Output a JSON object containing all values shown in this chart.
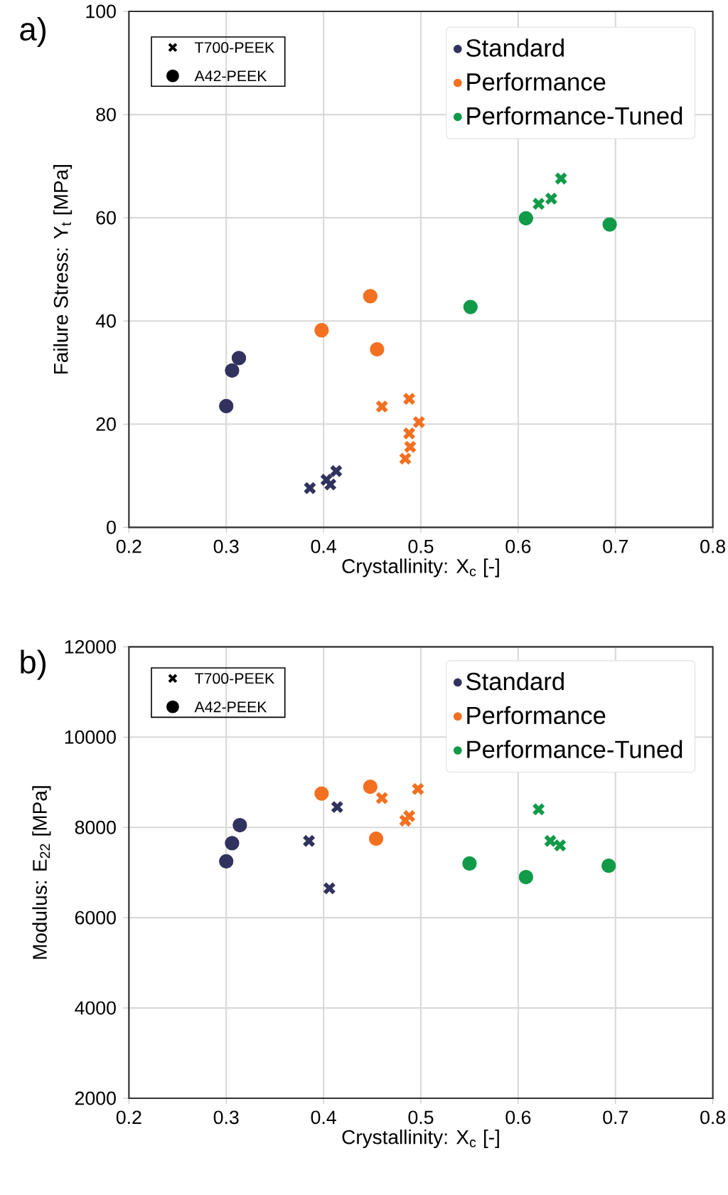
{
  "chart_data": [
    {
      "type": "scatter",
      "xlabel": "Crystallinity: X$_{c}$ [-]",
      "ylabel": "Failure Stress: Y$_{t}$ [MPa]",
      "annotations": [
        "a)"
      ],
      "xlim": [
        0.2,
        0.8
      ],
      "ylim": [
        0,
        100
      ],
      "xticks": [
        0.2,
        0.3,
        0.4,
        0.5,
        0.6,
        0.7,
        0.8
      ],
      "yticks": [
        0,
        20,
        40,
        60,
        80,
        100
      ],
      "grid": true,
      "legend": "top right",
      "series": [
        {
          "name": "Standard",
          "color": "#32325f",
          "marker": "circle",
          "x": [
            0.3,
            0.306,
            0.313
          ],
          "values": [
            23.5,
            30.4,
            32.8
          ]
        },
        {
          "color": "#32325f",
          "marker": "cross",
          "x": [
            0.386,
            0.403,
            0.407,
            0.413
          ],
          "values": [
            7.6,
            9.2,
            8.3,
            10.9
          ]
        },
        {
          "name": "Performance",
          "color": "#f37021",
          "marker": "circle",
          "x": [
            0.398,
            0.448,
            0.455
          ],
          "values": [
            38.2,
            44.8,
            34.5
          ]
        },
        {
          "color": "#f37021",
          "marker": "cross",
          "x": [
            0.46,
            0.488,
            0.498,
            0.488,
            0.489,
            0.484
          ],
          "values": [
            23.4,
            24.9,
            20.4,
            18.2,
            15.6,
            13.3
          ]
        },
        {
          "name": "Performance-Tuned",
          "color": "#119a48",
          "marker": "circle",
          "x": [
            0.551,
            0.608,
            0.694
          ],
          "values": [
            42.7,
            59.9,
            58.7
          ]
        },
        {
          "color": "#119a48",
          "marker": "cross",
          "x": [
            0.621,
            0.634,
            0.644
          ],
          "values": [
            62.7,
            63.7,
            67.6
          ]
        },
        {
          "name": "T700-PEEK",
          "color": "#000000",
          "marker": "cross"
        },
        {
          "name": "A42-PEEK",
          "color": "#000000",
          "marker": "circle"
        }
      ]
    },
    {
      "type": "scatter",
      "xlabel": "Crystallinity: X$_{c}$ [-]",
      "ylabel": "Modulus: E$_{22}$ [MPa]",
      "annotations": [
        "b)"
      ],
      "xlim": [
        0.2,
        0.8
      ],
      "ylim": [
        2000,
        12000
      ],
      "xticks": [
        0.2,
        0.3,
        0.4,
        0.5,
        0.6,
        0.7,
        0.8
      ],
      "yticks": [
        2000,
        4000,
        6000,
        8000,
        10000,
        12000
      ],
      "grid": true,
      "legend": "top right",
      "series": [
        {
          "name": "Standard",
          "color": "#32325f",
          "marker": "circle",
          "x": [
            0.3,
            0.306,
            0.314
          ],
          "values": [
            7250,
            7650,
            8050
          ]
        },
        {
          "color": "#32325f",
          "marker": "cross",
          "x": [
            0.385,
            0.414,
            0.406
          ],
          "values": [
            7700,
            8450,
            6650
          ]
        },
        {
          "name": "Performance",
          "color": "#f37021",
          "marker": "circle",
          "x": [
            0.398,
            0.448,
            0.454
          ],
          "values": [
            8750,
            8900,
            7750
          ]
        },
        {
          "color": "#f37021",
          "marker": "cross",
          "x": [
            0.46,
            0.497,
            0.488,
            0.484
          ],
          "values": [
            8650,
            8850,
            8250,
            8150
          ]
        },
        {
          "name": "Performance-Tuned",
          "color": "#119a48",
          "marker": "circle",
          "x": [
            0.55,
            0.608,
            0.693
          ],
          "values": [
            7200,
            6900,
            7150
          ]
        },
        {
          "color": "#119a48",
          "marker": "cross",
          "x": [
            0.621,
            0.633,
            0.643
          ],
          "values": [
            8400,
            7700,
            7600
          ]
        },
        {
          "name": "T700-PEEK",
          "color": "#000000",
          "marker": "cross"
        },
        {
          "name": "A42-PEEK",
          "color": "#000000",
          "marker": "circle"
        }
      ]
    }
  ]
}
